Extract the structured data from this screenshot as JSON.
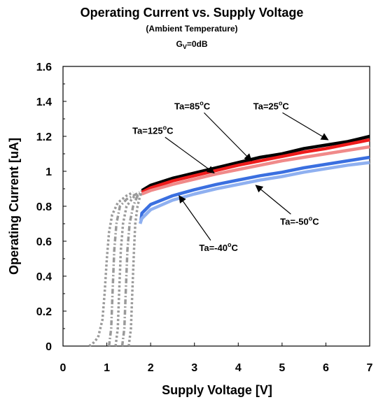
{
  "chart_data": {
    "type": "line",
    "title": "Operating Current vs. Supply Voltage",
    "subtitle": "(Ambient Temperature)",
    "condition": {
      "main": "G",
      "sub": "V",
      "rest": "=0dB"
    },
    "xlabel": "Supply Voltage [V]",
    "ylabel": "Operating Current [uA]",
    "xlim": [
      0,
      7
    ],
    "ylim": [
      0,
      1.6
    ],
    "x_ticks": [
      "0",
      "1",
      "2",
      "3",
      "4",
      "5",
      "6",
      "7"
    ],
    "y_ticks": [
      "0",
      "0.2",
      "0.4",
      "0.6",
      "0.8",
      "1",
      "1.2",
      "1.4",
      "1.6"
    ],
    "grid": false,
    "series": [
      {
        "name": "Ta=25°C",
        "color": "#000000",
        "startup": {
          "x": [
            1.5,
            1.55,
            1.58,
            1.62,
            1.65,
            1.7,
            1.75,
            1.8
          ],
          "y": [
            0.0,
            0.1,
            0.3,
            0.55,
            0.7,
            0.8,
            0.85,
            0.89
          ]
        },
        "x": [
          1.8,
          2.0,
          2.5,
          3.0,
          3.5,
          4.0,
          4.5,
          5.0,
          5.5,
          6.0,
          6.5,
          7.0
        ],
        "y": [
          0.89,
          0.92,
          0.96,
          0.99,
          1.02,
          1.05,
          1.08,
          1.1,
          1.13,
          1.15,
          1.17,
          1.2
        ]
      },
      {
        "name": "Ta=85°C",
        "color": "#ee1c1c",
        "startup": {
          "x": [
            1.35,
            1.4,
            1.43,
            1.47,
            1.52,
            1.6,
            1.7,
            1.8
          ],
          "y": [
            0.0,
            0.1,
            0.3,
            0.55,
            0.7,
            0.8,
            0.86,
            0.88
          ]
        },
        "x": [
          1.8,
          2.0,
          2.5,
          3.0,
          3.5,
          4.0,
          4.5,
          5.0,
          5.5,
          6.0,
          6.5,
          7.0
        ],
        "y": [
          0.88,
          0.905,
          0.945,
          0.975,
          1.005,
          1.035,
          1.06,
          1.085,
          1.11,
          1.13,
          1.155,
          1.18
        ]
      },
      {
        "name": "Ta=125°C",
        "color": "#f08a8a",
        "startup": {
          "x": [
            1.2,
            1.25,
            1.28,
            1.32,
            1.37,
            1.45,
            1.6,
            1.8
          ],
          "y": [
            0.0,
            0.1,
            0.3,
            0.55,
            0.7,
            0.8,
            0.85,
            0.87
          ]
        },
        "x": [
          1.8,
          2.0,
          2.5,
          3.0,
          3.5,
          4.0,
          4.5,
          5.0,
          5.5,
          6.0,
          6.5,
          7.0
        ],
        "y": [
          0.87,
          0.89,
          0.925,
          0.955,
          0.985,
          1.01,
          1.035,
          1.06,
          1.08,
          1.1,
          1.12,
          1.14
        ]
      },
      {
        "name": "Ta=-40°C",
        "color": "#3a6fe0",
        "startup": {
          "x": [
            1.05,
            1.1,
            1.13,
            1.17,
            1.22,
            1.3,
            1.45,
            1.75
          ],
          "y": [
            0.0,
            0.1,
            0.3,
            0.55,
            0.7,
            0.8,
            0.84,
            0.88
          ]
        },
        "x": [
          1.78,
          1.8,
          2.0,
          2.5,
          3.0,
          3.5,
          4.0,
          4.5,
          5.0,
          5.5,
          6.0,
          6.5,
          7.0
        ],
        "y": [
          0.72,
          0.76,
          0.81,
          0.86,
          0.895,
          0.925,
          0.95,
          0.975,
          0.995,
          1.02,
          1.04,
          1.06,
          1.08
        ]
      },
      {
        "name": "Ta=-50°C",
        "color": "#8fb0f0",
        "startup": {
          "x": [
            0.6,
            0.7,
            0.8,
            0.9,
            0.95,
            1.0,
            1.05,
            1.12,
            1.25,
            1.45,
            1.6
          ],
          "y": [
            0.0,
            0.02,
            0.05,
            0.15,
            0.3,
            0.5,
            0.65,
            0.75,
            0.82,
            0.86,
            0.88
          ]
        },
        "x": [
          1.76,
          1.8,
          2.0,
          2.5,
          3.0,
          3.5,
          4.0,
          4.5,
          5.0,
          5.5,
          6.0,
          6.5,
          7.0
        ],
        "y": [
          0.7,
          0.73,
          0.78,
          0.835,
          0.87,
          0.9,
          0.925,
          0.95,
          0.97,
          0.995,
          1.015,
          1.035,
          1.05
        ]
      }
    ],
    "annotations": [
      {
        "id": "ann-25",
        "main": "Ta=25",
        "sup": "o",
        "rest": "C",
        "label_x": 4.75,
        "label_y": 1.355,
        "tip": [
          6.05,
          1.18
        ]
      },
      {
        "id": "ann-85",
        "main": "Ta=85",
        "sup": "o",
        "rest": "C",
        "label_x": 2.95,
        "label_y": 1.355,
        "tip": [
          4.3,
          1.06
        ]
      },
      {
        "id": "ann-125",
        "main": "Ta=125",
        "sup": "o",
        "rest": "C",
        "label_x": 2.05,
        "label_y": 1.215,
        "tip": [
          3.45,
          0.99
        ]
      },
      {
        "id": "ann-m50",
        "main": "Ta=-50",
        "sup": "o",
        "rest": "C",
        "label_x": 5.4,
        "label_y": 0.695,
        "tip": [
          4.4,
          0.92
        ]
      },
      {
        "id": "ann-m40",
        "main": "Ta=-40",
        "sup": "o",
        "rest": "C",
        "label_x": 3.55,
        "label_y": 0.545,
        "tip": [
          2.65,
          0.86
        ]
      }
    ]
  }
}
